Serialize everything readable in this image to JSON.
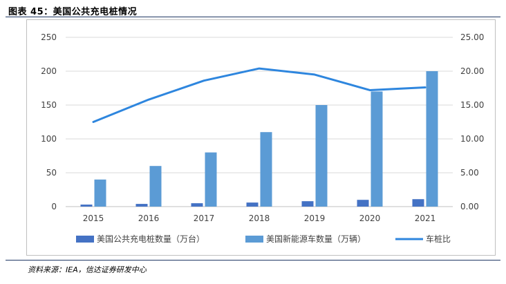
{
  "figure_title": "图表 45：美国公共充电桩情况",
  "source": "资料来源：IEA，信达证券研发中心",
  "colors": {
    "chargers": "#4472c4",
    "evs": "#5b9bd5",
    "ratio_line": "#2e86de",
    "rule": "#1f3864"
  },
  "chart_data": {
    "type": "bar",
    "categories": [
      "2015",
      "2016",
      "2017",
      "2018",
      "2019",
      "2020",
      "2021"
    ],
    "series": [
      {
        "name": "美国公共充电桩数量（万台）",
        "type": "bar",
        "axis": "left",
        "values": [
          3,
          4,
          5,
          6,
          8,
          10,
          11
        ]
      },
      {
        "name": "美国新能源车数量（万辆）",
        "type": "bar",
        "axis": "left",
        "values": [
          40,
          60,
          80,
          110,
          150,
          170,
          200
        ]
      },
      {
        "name": "车桩比",
        "type": "line",
        "axis": "right",
        "values": [
          12.5,
          15.8,
          18.6,
          20.4,
          19.5,
          17.2,
          17.6
        ]
      }
    ],
    "ylim_left": [
      0,
      250
    ],
    "yticks_left": [
      "0",
      "50",
      "100",
      "150",
      "200",
      "250"
    ],
    "ylim_right": [
      0,
      25
    ],
    "yticks_right": [
      "0.00",
      "5.00",
      "10.00",
      "15.00",
      "20.00",
      "25.00"
    ],
    "grid": true,
    "legend_position": "bottom"
  }
}
